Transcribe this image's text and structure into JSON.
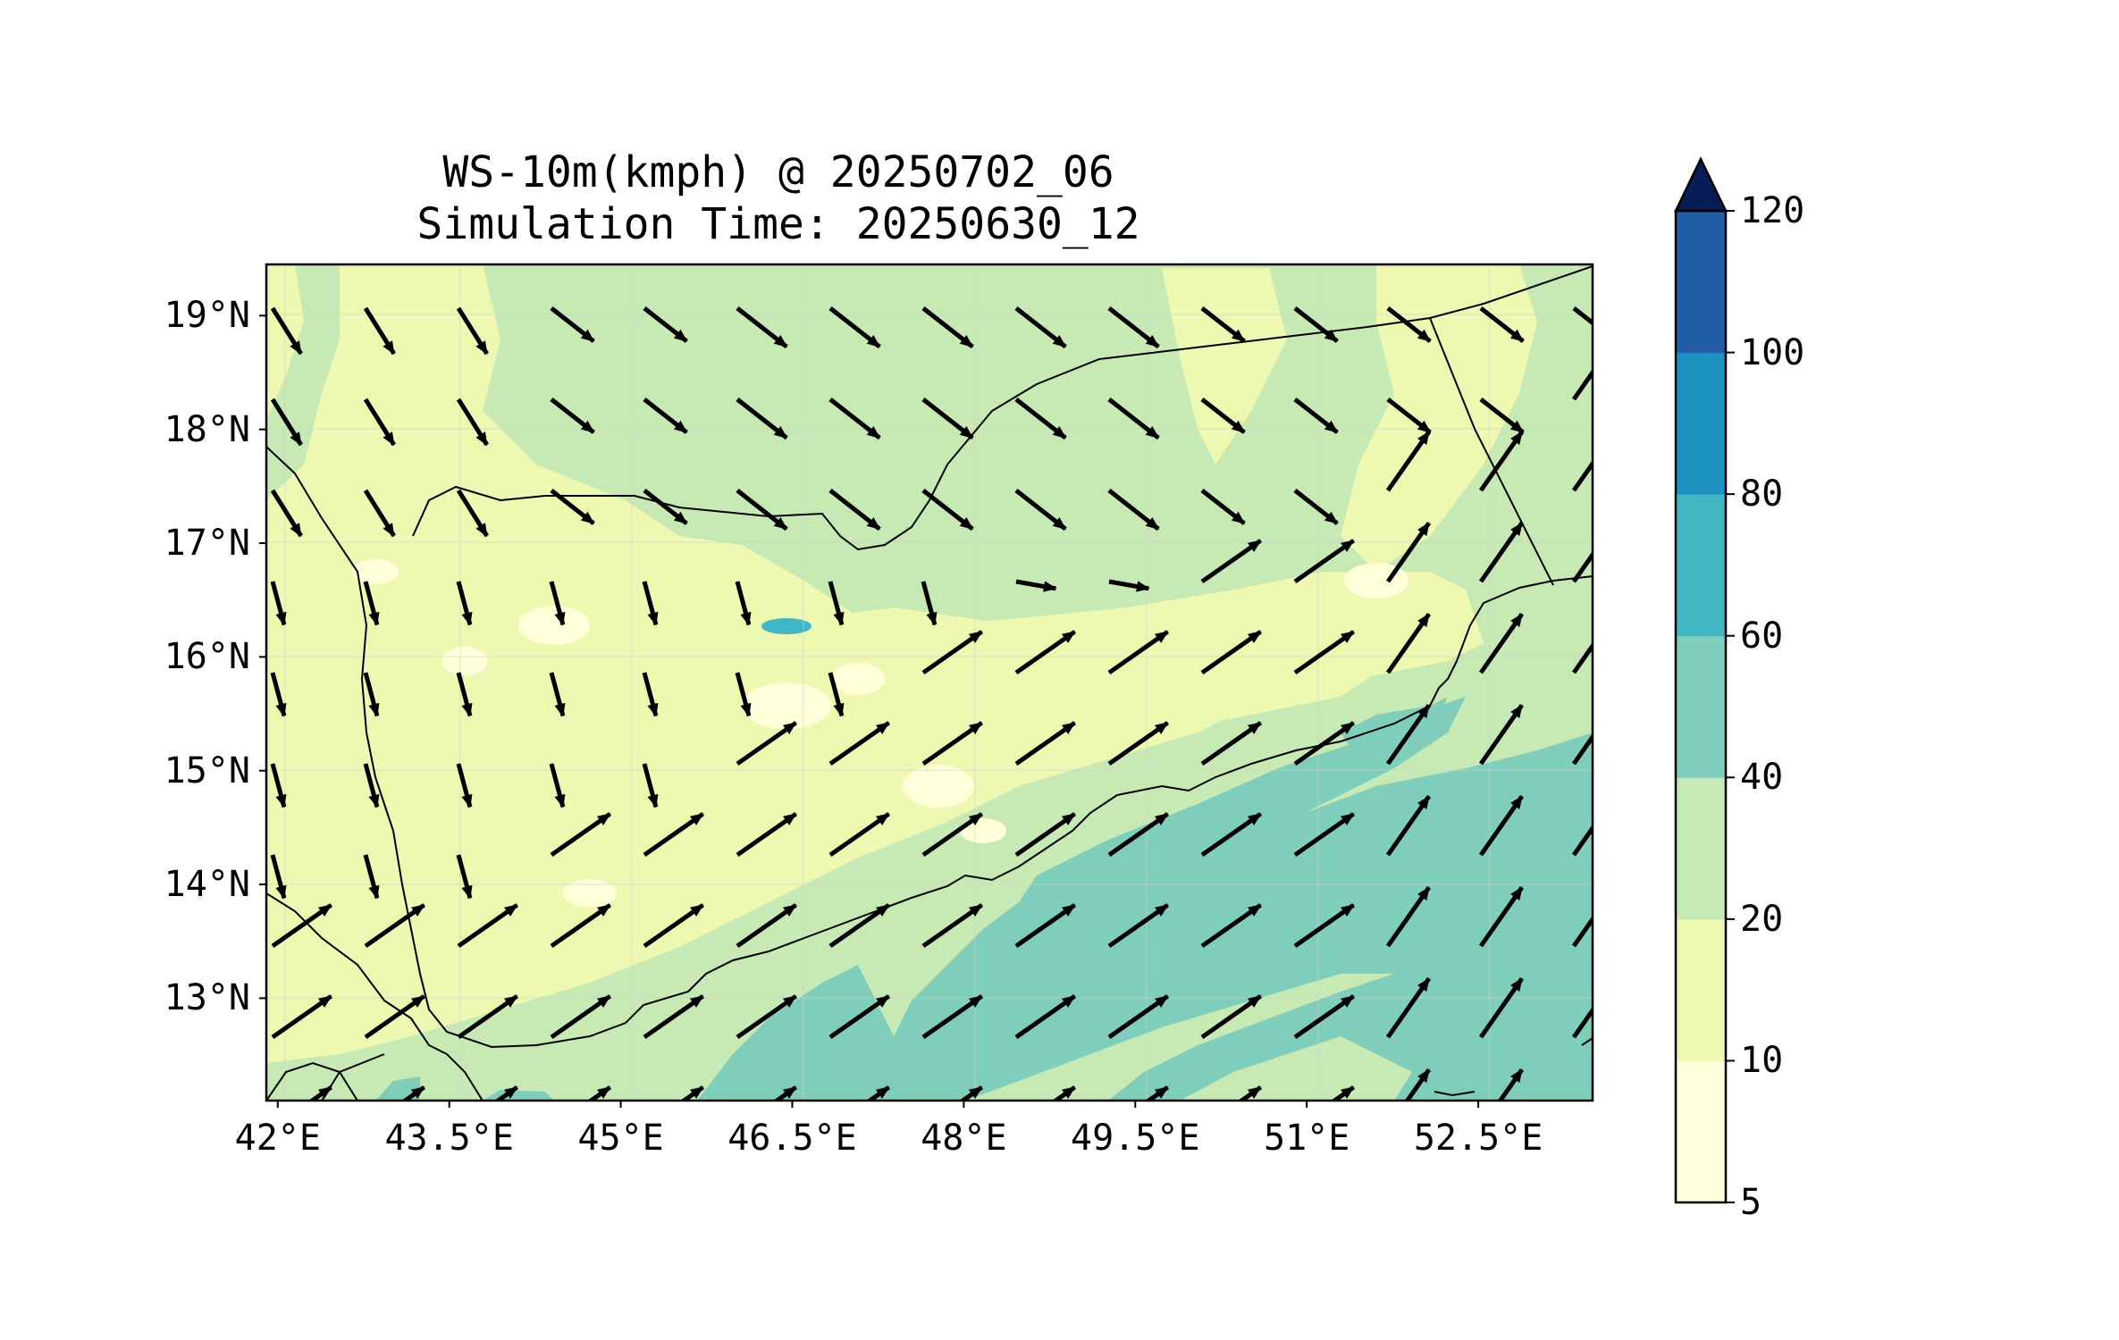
{
  "title": {
    "line1": "WS-10m(kmph) @ 20250702_06",
    "line2": "Simulation Time: 20250630_12"
  },
  "map": {
    "x_ticks": [
      "42°E",
      "43.5°E",
      "45°E",
      "46.5°E",
      "48°E",
      "49.5°E",
      "51°E",
      "52.5°E"
    ],
    "y_ticks": [
      "19°N",
      "18°N",
      "17°N",
      "16°N",
      "15°N",
      "14°N",
      "13°N"
    ],
    "lon_range": [
      41.9,
      53.5
    ],
    "lat_range": [
      12.1,
      19.45
    ],
    "region": "Yemen and Gulf of Aden",
    "vector_field": "10 m wind direction arrows",
    "contour_field": "10 m wind speed (kmph)"
  },
  "colorbar": {
    "levels": [
      "5",
      "10",
      "20",
      "40",
      "60",
      "80",
      "100",
      "120"
    ],
    "colors": [
      "#ffffd9",
      "#edf8b1",
      "#c7e9b4",
      "#7fcdbb",
      "#41b6c4",
      "#1d91c0",
      "#225ea8",
      "#253494"
    ],
    "extend_color": "#081d58",
    "extend": "max"
  },
  "chart_data": {
    "type": "heatmap",
    "title": "WS-10m(kmph) @ 20250702_06",
    "subtitle": "Simulation Time: 20250630_12",
    "xlabel": "",
    "ylabel": "",
    "xlim": [
      41.9,
      53.5
    ],
    "ylim": [
      12.1,
      19.45
    ],
    "colorbar_levels": [
      5,
      10,
      20,
      40,
      60,
      80,
      100,
      120
    ],
    "dominant_speed_bands": {
      "inland_highlands": "10-20",
      "northern_desert": "20-40",
      "gulf_of_aden": "40-60",
      "local_max_near_16.2N_46.5E": "60-80"
    },
    "wind_regime": {
      "north_of_16N": "northwesterly (toward southeast)",
      "over_sea": "southwesterly (toward northeast)"
    }
  }
}
